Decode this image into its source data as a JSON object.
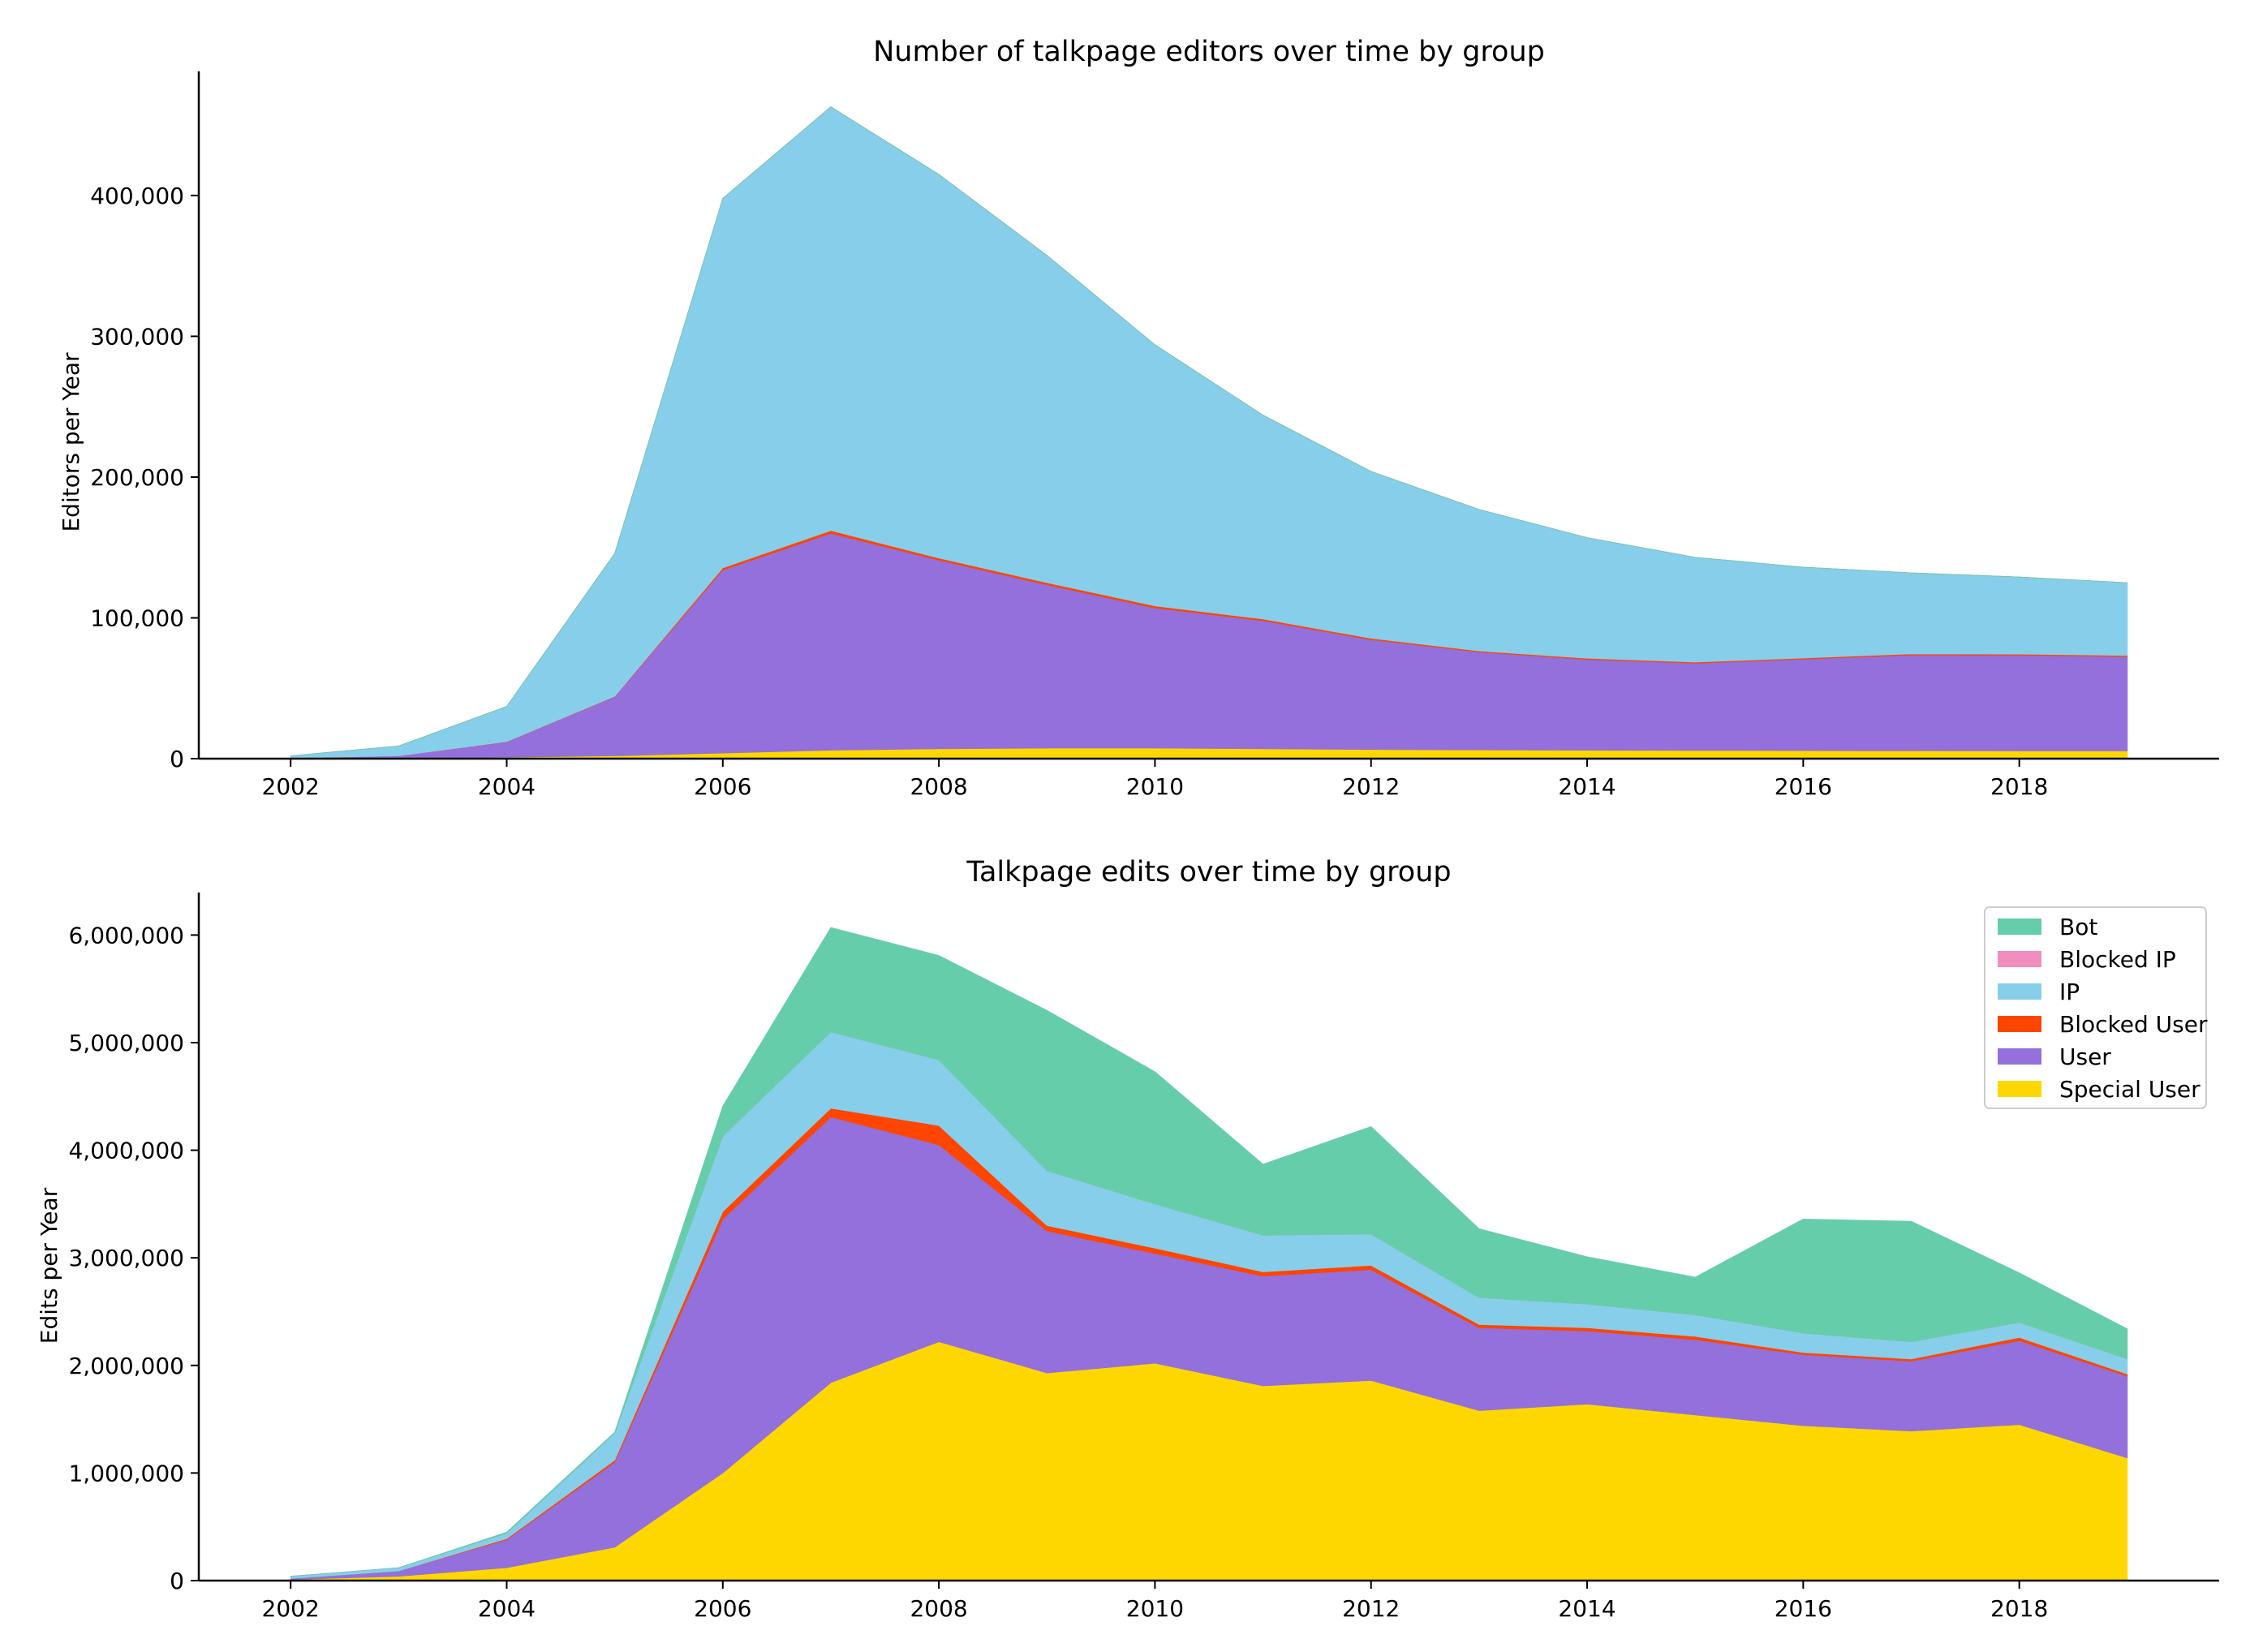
{
  "chart_data": [
    {
      "type": "area",
      "stacked": true,
      "title": "Number of talkpage editors over time by group",
      "xlabel": "",
      "ylabel": "Editors per Year",
      "x": [
        2002,
        2003,
        2004,
        2005,
        2006,
        2007,
        2008,
        2009,
        2010,
        2011,
        2012,
        2013,
        2014,
        2015,
        2016,
        2017,
        2018,
        2019
      ],
      "xlim": [
        2001.15,
        2019.85
      ],
      "ylim": [
        0,
        487000
      ],
      "xticks": [
        2002,
        2004,
        2006,
        2008,
        2010,
        2012,
        2014,
        2016,
        2018
      ],
      "xtick_labels": [
        "2002",
        "2004",
        "2006",
        "2008",
        "2010",
        "2012",
        "2014",
        "2016",
        "2018"
      ],
      "yticks": [
        0,
        100000,
        200000,
        300000,
        400000
      ],
      "ytick_labels": [
        "0",
        "100,000",
        "200,000",
        "300,000",
        "400,000"
      ],
      "series": [
        {
          "name": "Special User",
          "color": "#FFD700",
          "values": [
            0,
            0,
            1000,
            2000,
            4000,
            6000,
            7000,
            7500,
            7500,
            7000,
            6500,
            6200,
            6000,
            5800,
            5700,
            5600,
            5500,
            5500
          ]
        },
        {
          "name": "User",
          "color": "#9370DB",
          "values": [
            500,
            2000,
            11000,
            42000,
            130000,
            154000,
            134000,
            116000,
            99500,
            91000,
            78000,
            69500,
            64500,
            62000,
            65000,
            68000,
            68000,
            67000
          ]
        },
        {
          "name": "Blocked User",
          "color": "#FF4500",
          "values": [
            0,
            0,
            100,
            300,
            1500,
            2000,
            1500,
            1500,
            1500,
            1200,
            1000,
            800,
            800,
            800,
            800,
            800,
            800,
            800
          ]
        },
        {
          "name": "IP",
          "color": "#87CEEB",
          "values": [
            1500,
            7000,
            25000,
            101500,
            262500,
            301000,
            272500,
            232500,
            185500,
            144800,
            118500,
            100500,
            85700,
            74400,
            64500,
            57600,
            54700,
            51700
          ]
        },
        {
          "name": "Blocked IP",
          "color": "#F08EC0",
          "values": [
            0,
            0,
            0,
            0,
            0,
            0,
            0,
            0,
            0,
            0,
            0,
            0,
            0,
            0,
            0,
            0,
            0,
            0
          ]
        },
        {
          "name": "Bot",
          "color": "#66CDAA",
          "values": [
            0,
            0,
            0,
            0,
            0,
            0,
            0,
            0,
            0,
            0,
            0,
            0,
            0,
            0,
            0,
            0,
            0,
            0
          ]
        }
      ]
    },
    {
      "type": "area",
      "stacked": true,
      "title": "Talkpage edits over time by group",
      "xlabel": "",
      "ylabel": "Edits per Year",
      "x": [
        2002,
        2003,
        2004,
        2005,
        2006,
        2007,
        2008,
        2009,
        2010,
        2011,
        2012,
        2013,
        2014,
        2015,
        2016,
        2017,
        2018,
        2019
      ],
      "xlim": [
        2001.15,
        2019.85
      ],
      "ylim": [
        0,
        6380000
      ],
      "xticks": [
        2002,
        2004,
        2006,
        2008,
        2010,
        2012,
        2014,
        2016,
        2018
      ],
      "xtick_labels": [
        "2002",
        "2004",
        "2006",
        "2008",
        "2010",
        "2012",
        "2014",
        "2016",
        "2018"
      ],
      "yticks": [
        0,
        1000000,
        2000000,
        3000000,
        4000000,
        5000000,
        6000000
      ],
      "ytick_labels": [
        "0",
        "1,000,000",
        "2,000,000",
        "3,000,000",
        "4,000,000",
        "5,000,000",
        "6,000,000"
      ],
      "legend": {
        "position": "top-right",
        "order": [
          "Bot",
          "Blocked IP",
          "IP",
          "Blocked User",
          "User",
          "Special User"
        ]
      },
      "series": [
        {
          "name": "Special User",
          "color": "#FFD700",
          "values": [
            10000,
            40000,
            120000,
            310000,
            1000000,
            1840000,
            2220000,
            1930000,
            2020000,
            1810000,
            1860000,
            1580000,
            1640000,
            1540000,
            1440000,
            1390000,
            1450000,
            1140000
          ]
        },
        {
          "name": "User",
          "color": "#9370DB",
          "values": [
            10000,
            50000,
            260000,
            790000,
            2360000,
            2470000,
            1830000,
            1320000,
            1020000,
            1020000,
            1030000,
            770000,
            680000,
            700000,
            660000,
            650000,
            780000,
            760000
          ]
        },
        {
          "name": "Blocked User",
          "color": "#FF4500",
          "values": [
            0,
            0,
            10000,
            20000,
            70000,
            80000,
            180000,
            50000,
            50000,
            40000,
            40000,
            30000,
            30000,
            30000,
            20000,
            20000,
            30000,
            20000
          ]
        },
        {
          "name": "IP",
          "color": "#87CEEB",
          "values": [
            20000,
            30000,
            50000,
            250000,
            700000,
            710000,
            610000,
            510000,
            410000,
            340000,
            290000,
            250000,
            220000,
            200000,
            180000,
            160000,
            140000,
            140000
          ]
        },
        {
          "name": "Blocked IP",
          "color": "#F08EC0",
          "values": [
            0,
            0,
            0,
            0,
            0,
            0,
            0,
            0,
            0,
            0,
            0,
            0,
            0,
            0,
            0,
            0,
            0,
            0
          ]
        },
        {
          "name": "Bot",
          "color": "#66CDAA",
          "values": [
            0,
            0,
            10000,
            10000,
            280000,
            970000,
            970000,
            1490000,
            1230000,
            660000,
            1000000,
            640000,
            440000,
            350000,
            1060000,
            1120000,
            460000,
            280000
          ]
        }
      ]
    }
  ]
}
